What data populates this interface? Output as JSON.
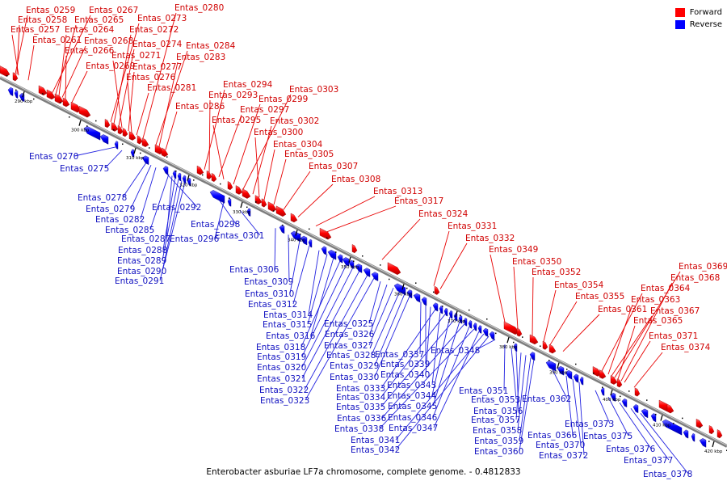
{
  "caption": "Enterobacter asburiae LF7a chromosome, complete genome. - 0.4812833",
  "legend": [
    {
      "label": "Forward",
      "color": "#ff0000"
    },
    {
      "label": "Reverse",
      "color": "#0000ff"
    }
  ],
  "colors": {
    "forward": "#ff0000",
    "reverse": "#0000ff",
    "forward_line": "#e80000",
    "reverse_line": "#2020e0",
    "backbone": "#8a8a8a"
  },
  "ticks": [
    "290 kbp",
    "300 kbp",
    "310 kbp",
    "320 kbp",
    "330 kbp",
    "340 kbp",
    "350 kbp",
    "360 kbp",
    "370 kbp",
    "380 kbp",
    "390 kbp",
    "400 kbp",
    "410 kbp",
    "420 kbp"
  ],
  "forward_genes": [
    "Entas_0259",
    "Entas_0258",
    "Entas_0257",
    "Entas_0261",
    "Entas_0267",
    "Entas_0265",
    "Entas_0264",
    "Entas_0268",
    "Entas_0266",
    "Entas_0269",
    "Entas_0273",
    "Entas_0272",
    "Entas_0274",
    "Entas_0271",
    "Entas_0277",
    "Entas_0276",
    "Entas_0281",
    "Entas_0280",
    "Entas_0284",
    "Entas_0283",
    "Entas_0286",
    "Entas_0294",
    "Entas_0293",
    "Entas_0297",
    "Entas_0295",
    "Entas_0299",
    "Entas_0303",
    "Entas_0302",
    "Entas_0300",
    "Entas_0304",
    "Entas_0305",
    "Entas_0307",
    "Entas_0308",
    "Entas_0313",
    "Entas_0317",
    "Entas_0324",
    "Entas_0331",
    "Entas_0332",
    "Entas_0349",
    "Entas_0350",
    "Entas_0352",
    "Entas_0354",
    "Entas_0355",
    "Entas_0361",
    "Entas_0369",
    "Entas_0368",
    "Entas_0364",
    "Entas_0363",
    "Entas_0367",
    "Entas_0365",
    "Entas_0371",
    "Entas_0374"
  ],
  "reverse_genes": [
    "Entas_0270",
    "Entas_0275",
    "Entas_0278",
    "Entas_0279",
    "Entas_0282",
    "Entas_0292",
    "Entas_0285",
    "Entas_0287",
    "Entas_0288",
    "Entas_0289",
    "Entas_0290",
    "Entas_0291",
    "Entas_0298",
    "Entas_0296",
    "Entas_0301",
    "Entas_0306",
    "Entas_0309",
    "Entas_0310",
    "Entas_0312",
    "Entas_0314",
    "Entas_0315",
    "Entas_0316",
    "Entas_0318",
    "Entas_0319",
    "Entas_0320",
    "Entas_0321",
    "Entas_0322",
    "Entas_0323",
    "Entas_0325",
    "Entas_0326",
    "Entas_0327",
    "Entas_0328",
    "Entas_0329",
    "Entas_0330",
    "Entas_0337",
    "Entas_0339",
    "Entas_0340",
    "Entas_0333",
    "Entas_0343",
    "Entas_0334",
    "Entas_0344",
    "Entas_0335",
    "Entas_0345",
    "Entas_0336",
    "Entas_0346",
    "Entas_0338",
    "Entas_0347",
    "Entas_0341",
    "Entas_0342",
    "Entas_0348",
    "Entas_0351",
    "Entas_0353",
    "Entas_0356",
    "Entas_0357",
    "Entas_0358",
    "Entas_0359",
    "Entas_0360",
    "Entas_0362",
    "Entas_0366",
    "Entas_0370",
    "Entas_0372",
    "Entas_0373",
    "Entas_0375",
    "Entas_0376",
    "Entas_0377",
    "Entas_0378"
  ]
}
